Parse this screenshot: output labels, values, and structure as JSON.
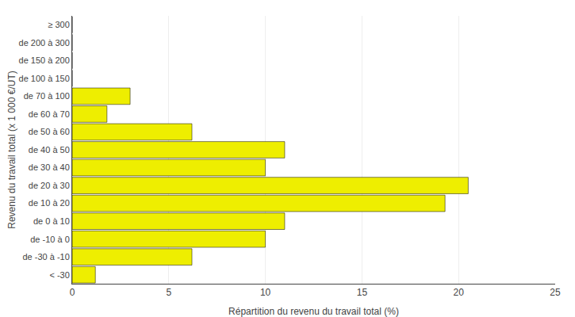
{
  "chart_data": {
    "type": "bar",
    "orientation": "horizontal",
    "categories": [
      "≥ 300",
      "de 200 à 300",
      "de 150 à 200",
      "de 100 à 150",
      "de 70 à 100",
      "de 60 à 70",
      "de 50 à 60",
      "de 40 à 50",
      "de 30 à 40",
      "de 20 à 30",
      "de 10 à 20",
      "de 0 à 10",
      "de -10 à 0",
      "de -30 à -10",
      "< -30"
    ],
    "values": [
      0,
      0,
      0,
      0,
      3.0,
      1.8,
      6.2,
      11.0,
      10.0,
      20.5,
      19.3,
      11.0,
      10.0,
      6.2,
      1.2
    ],
    "color": "#EEEE00",
    "xlabel": "Répartition du revenu du travail total (%)",
    "ylabel": "Revenu du travail total (x 1 000 €/UT)",
    "xlim": [
      0,
      25
    ],
    "xticks": [
      0,
      5,
      10,
      15,
      20,
      25
    ],
    "grid": true
  }
}
